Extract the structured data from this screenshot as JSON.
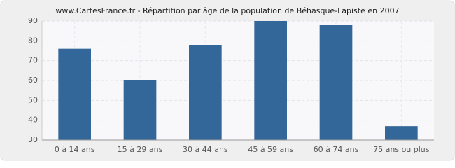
{
  "chart_data": {
    "type": "bar",
    "title": "www.CartesFrance.fr - Répartition par âge de la population de Béhasque-Lapiste en 2007",
    "categories": [
      "0 à 14 ans",
      "15 à 29 ans",
      "30 à 44 ans",
      "45 à 59 ans",
      "60 à 74 ans",
      "75 ans ou plus"
    ],
    "values": [
      76,
      60,
      78,
      90,
      88,
      37
    ],
    "color": "#336699",
    "ylim": [
      30,
      90
    ],
    "yticks": [
      30,
      40,
      50,
      60,
      70,
      80,
      90
    ],
    "grid": true
  }
}
